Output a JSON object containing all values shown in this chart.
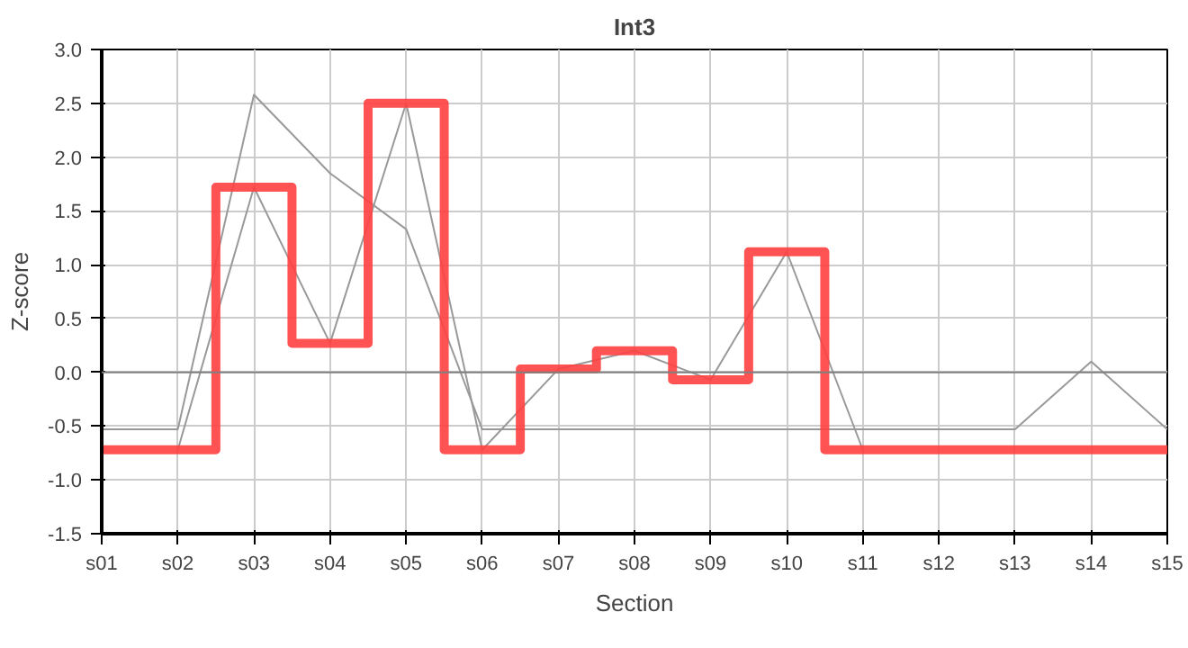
{
  "chart_data": {
    "type": "step",
    "title": "Int3",
    "xlabel": "Section",
    "ylabel": "Z-score",
    "categories": [
      "s01",
      "s02",
      "s03",
      "s04",
      "s05",
      "s06",
      "s07",
      "s08",
      "s09",
      "s10",
      "s11",
      "s12",
      "s13",
      "s14",
      "s15"
    ],
    "series": [
      {
        "type": "line",
        "color": "#999999",
        "values": [
          -0.53,
          -0.53,
          2.58,
          1.85,
          1.33,
          -0.53,
          -0.53,
          -0.53,
          -0.53,
          -0.53,
          -0.53,
          -0.53,
          -0.53,
          0.1,
          -0.53
        ]
      },
      {
        "type": "line",
        "color": "#999999",
        "values": [
          null,
          -0.72,
          1.72,
          0.27,
          2.5,
          -0.72,
          0.03,
          0.2,
          -0.07,
          1.12,
          -0.72,
          null,
          null,
          null,
          null
        ]
      },
      {
        "color": "#ff4040",
        "values": [
          -0.72,
          -0.72,
          1.72,
          0.27,
          2.5,
          -0.72,
          0.03,
          0.2,
          -0.07,
          1.12,
          -0.72,
          -0.72,
          -0.72,
          -0.72,
          -0.72
        ]
      }
    ],
    "ylim": [
      -1.5,
      3.0
    ],
    "yticks": [
      -1.5,
      {
        "value": -1,
        "label": "-1.0"
      },
      -0.5,
      {
        "value": 0,
        "label": "0.0"
      },
      0.5,
      {
        "value": 1,
        "label": "1.0"
      },
      1.5,
      {
        "value": 2,
        "label": "2.0"
      },
      2.5,
      {
        "value": 3,
        "label": "3.0"
      }
    ],
    "ref_lines": [
      {
        "axis": "y",
        "value": 0,
        "color": "#808080"
      }
    ],
    "grid": true
  }
}
